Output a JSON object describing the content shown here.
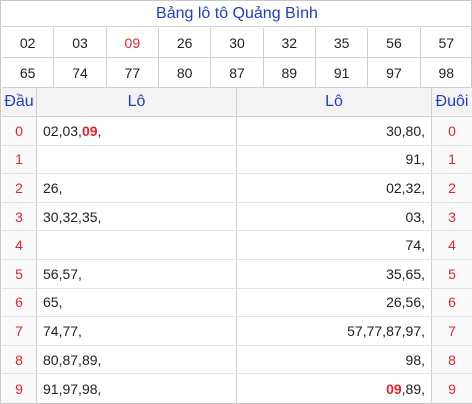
{
  "title": "Bảng lô tô Quảng Bình",
  "colors": {
    "title": "#1f3fbf",
    "highlight": "#e0252f"
  },
  "numbers_row1": [
    {
      "v": "02",
      "hi": false
    },
    {
      "v": "03",
      "hi": false
    },
    {
      "v": "09",
      "hi": true
    },
    {
      "v": "26",
      "hi": false
    },
    {
      "v": "30",
      "hi": false
    },
    {
      "v": "32",
      "hi": false
    },
    {
      "v": "35",
      "hi": false
    },
    {
      "v": "56",
      "hi": false
    },
    {
      "v": "57",
      "hi": false
    }
  ],
  "numbers_row2": [
    {
      "v": "65",
      "hi": false
    },
    {
      "v": "74",
      "hi": false
    },
    {
      "v": "77",
      "hi": false
    },
    {
      "v": "80",
      "hi": false
    },
    {
      "v": "87",
      "hi": false
    },
    {
      "v": "89",
      "hi": false
    },
    {
      "v": "91",
      "hi": false
    },
    {
      "v": "97",
      "hi": false
    },
    {
      "v": "98",
      "hi": false
    }
  ],
  "headers": {
    "dau": "Đầu",
    "lo_left": "Lô",
    "lo_right": "Lô",
    "duoi": "Đuôi"
  },
  "rows": [
    {
      "dau": "0",
      "left": [
        {
          "v": "02"
        },
        {
          "v": "03"
        },
        {
          "v": "09",
          "hi": true
        }
      ],
      "right": [
        {
          "v": "30"
        },
        {
          "v": "80"
        }
      ],
      "duoi": "0"
    },
    {
      "dau": "1",
      "left": [],
      "right": [
        {
          "v": "91"
        }
      ],
      "duoi": "1"
    },
    {
      "dau": "2",
      "left": [
        {
          "v": "26"
        }
      ],
      "right": [
        {
          "v": "02"
        },
        {
          "v": "32"
        }
      ],
      "duoi": "2"
    },
    {
      "dau": "3",
      "left": [
        {
          "v": "30"
        },
        {
          "v": "32"
        },
        {
          "v": "35"
        }
      ],
      "right": [
        {
          "v": "03"
        }
      ],
      "duoi": "3"
    },
    {
      "dau": "4",
      "left": [],
      "right": [
        {
          "v": "74"
        }
      ],
      "duoi": "4"
    },
    {
      "dau": "5",
      "left": [
        {
          "v": "56"
        },
        {
          "v": "57"
        }
      ],
      "right": [
        {
          "v": "35"
        },
        {
          "v": "65"
        }
      ],
      "duoi": "5"
    },
    {
      "dau": "6",
      "left": [
        {
          "v": "65"
        }
      ],
      "right": [
        {
          "v": "26"
        },
        {
          "v": "56"
        }
      ],
      "duoi": "6"
    },
    {
      "dau": "7",
      "left": [
        {
          "v": "74"
        },
        {
          "v": "77"
        }
      ],
      "right": [
        {
          "v": "57"
        },
        {
          "v": "77"
        },
        {
          "v": "87"
        },
        {
          "v": "97"
        }
      ],
      "duoi": "7"
    },
    {
      "dau": "8",
      "left": [
        {
          "v": "80"
        },
        {
          "v": "87"
        },
        {
          "v": "89"
        }
      ],
      "right": [
        {
          "v": "98"
        }
      ],
      "duoi": "8"
    },
    {
      "dau": "9",
      "left": [
        {
          "v": "91"
        },
        {
          "v": "97"
        },
        {
          "v": "98"
        }
      ],
      "right": [
        {
          "v": "09",
          "hi": true
        },
        {
          "v": "89"
        }
      ],
      "duoi": "9"
    }
  ]
}
